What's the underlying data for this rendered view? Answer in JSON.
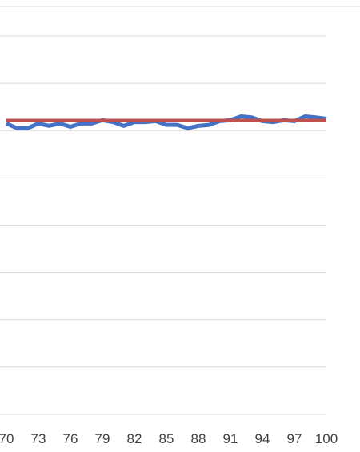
{
  "chart_data": {
    "type": "line",
    "title": "",
    "xlabel": "",
    "ylabel": "",
    "x_tick_labels": [
      "70",
      "73",
      "76",
      "79",
      "82",
      "85",
      "88",
      "91",
      "94",
      "97",
      "100"
    ],
    "x_range": [
      70,
      100
    ],
    "y_range": [
      0,
      8
    ],
    "y_tick_labels_visible": false,
    "grid": true,
    "legend": "none",
    "series": [
      {
        "values": [
          6.15,
          6.05,
          6.05,
          6.15,
          6.1,
          6.15,
          6.08,
          6.15,
          6.15,
          6.22,
          6.18,
          6.1,
          6.18,
          6.18,
          6.2,
          6.12,
          6.12,
          6.05,
          6.1,
          6.12,
          6.2,
          6.22,
          6.3,
          6.28,
          6.2,
          6.18,
          6.22,
          6.2,
          6.3,
          6.28,
          6.25
        ],
        "color": "#4472c4"
      },
      {
        "values": [
          6.22,
          6.22,
          6.22,
          6.22,
          6.22,
          6.22,
          6.22,
          6.22,
          6.22,
          6.22,
          6.22,
          6.22,
          6.22,
          6.22,
          6.22,
          6.22,
          6.22,
          6.22,
          6.22,
          6.22,
          6.22,
          6.22,
          6.22,
          6.22,
          6.22,
          6.22,
          6.22,
          6.22,
          6.22,
          6.22,
          6.22
        ],
        "color": "#c0504d"
      }
    ]
  }
}
